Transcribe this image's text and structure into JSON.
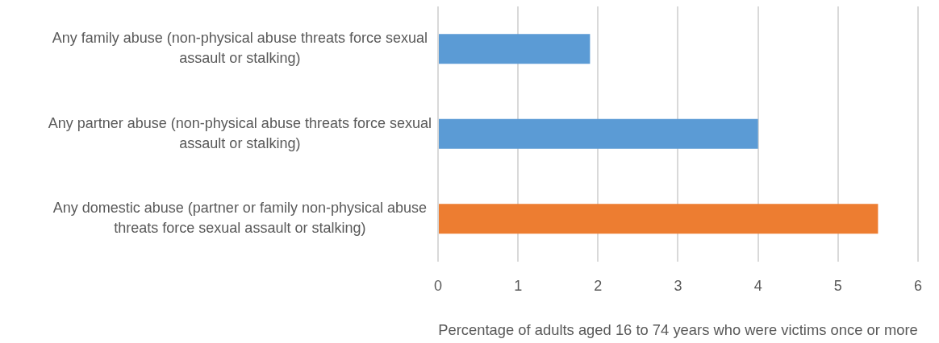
{
  "chart_data": {
    "type": "bar",
    "orientation": "horizontal",
    "categories": [
      "Any family abuse (non-physical abuse threats force sexual assault or stalking)",
      "Any partner abuse (non-physical abuse threats force sexual assault or stalking)",
      "Any domestic abuse (partner or family non-physical abuse threats force sexual assault or stalking)"
    ],
    "values": [
      1.9,
      4.0,
      5.5
    ],
    "colors": [
      "#5b9bd5",
      "#5b9bd5",
      "#ed7d31"
    ],
    "xlabel": "Percentage of adults aged 16 to 74 years who were victims once or more",
    "xlim": [
      0,
      6
    ],
    "xticks": [
      0,
      1,
      2,
      3,
      4,
      5,
      6
    ],
    "grid": "x"
  }
}
